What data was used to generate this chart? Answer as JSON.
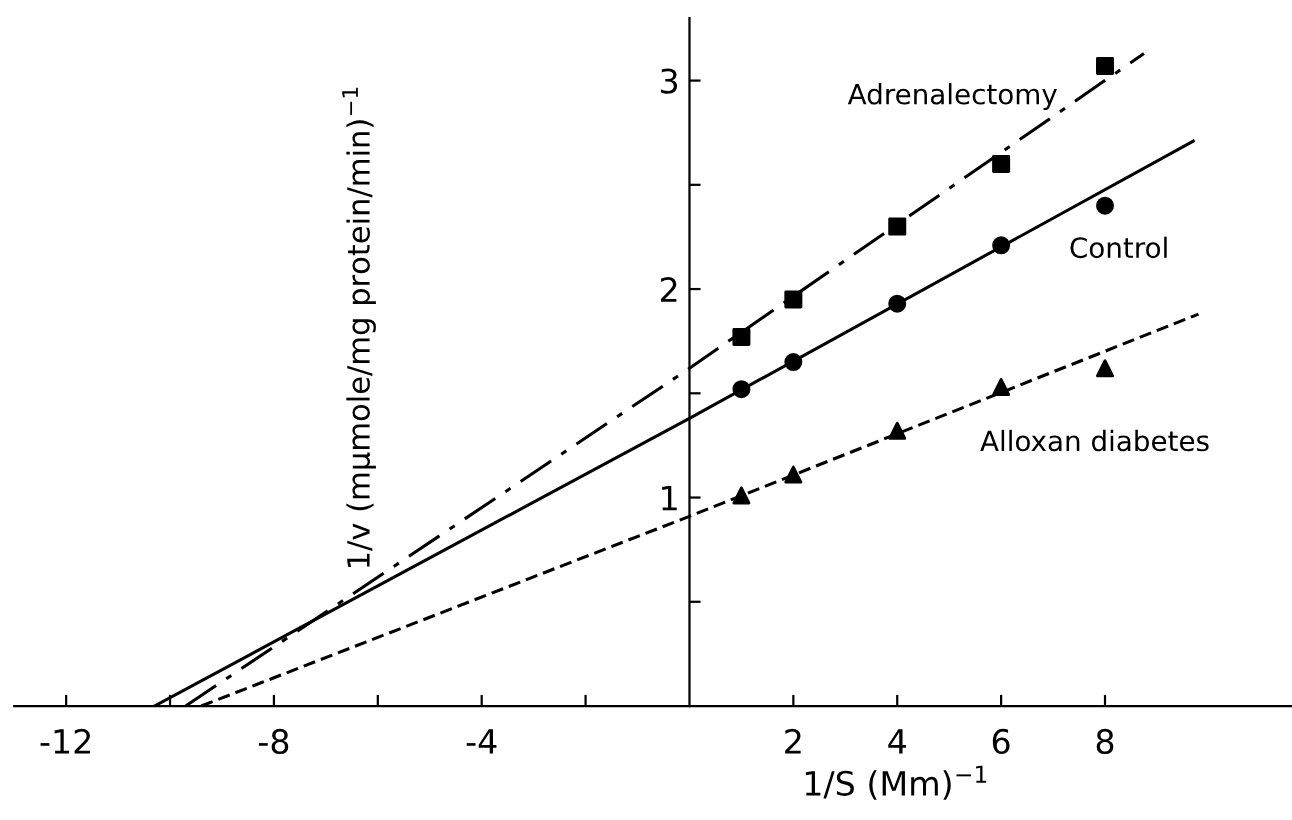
{
  "chart_data": {
    "type": "scatter",
    "xlabel": "1/S (Mm)$^{−1}$",
    "ylabel": "1/v (mμmole/mg protein/min)$^{−1}$",
    "xlim": [
      -13,
      11.6
    ],
    "ylim": [
      0,
      3.3
    ],
    "xticks": [
      -12,
      {
        "value": -10,
        "label": null
      },
      -8,
      {
        "value": -6,
        "label": null
      },
      -4,
      {
        "value": -2,
        "label": null
      },
      2,
      4,
      6,
      8
    ],
    "yticks": [
      {
        "value": 0.5,
        "label": null
      },
      1,
      {
        "value": 1.5,
        "label": null
      },
      2,
      {
        "value": 2.5,
        "label": null
      },
      3
    ],
    "grid": false,
    "legend": false,
    "series": [
      {
        "name": "Adrenalectomy",
        "color": "#000000",
        "marker": "square",
        "x": [
          1,
          2,
          4,
          6,
          8
        ],
        "values": [
          1.77,
          1.95,
          2.3,
          2.6,
          3.07
        ]
      },
      {
        "name": "Control",
        "color": "#000000",
        "marker": "circle",
        "x": [
          1,
          2,
          4,
          6,
          8
        ],
        "values": [
          1.52,
          1.65,
          1.93,
          2.21,
          2.4
        ]
      },
      {
        "name": "Alloxan diabetes",
        "color": "#000000",
        "marker": "triangle",
        "x": [
          1,
          2,
          4,
          6,
          8
        ],
        "values": [
          1.01,
          1.11,
          1.32,
          1.53,
          1.62
        ]
      },
      {
        "type": "line",
        "color": "#000000",
        "line_style": "dashdot",
        "x": [
          -9.7,
          0,
          8.75
        ],
        "values": [
          0,
          1.62,
          3.13
        ]
      },
      {
        "type": "line",
        "color": "#000000",
        "line_style": "solid",
        "x": [
          -10.3,
          0,
          9.7
        ],
        "values": [
          0,
          1.38,
          2.71
        ]
      },
      {
        "type": "line",
        "color": "#000000",
        "line_style": "dashed",
        "x": [
          -9.4,
          0,
          9.8
        ],
        "values": [
          0,
          0.91,
          1.88
        ]
      }
    ]
  }
}
